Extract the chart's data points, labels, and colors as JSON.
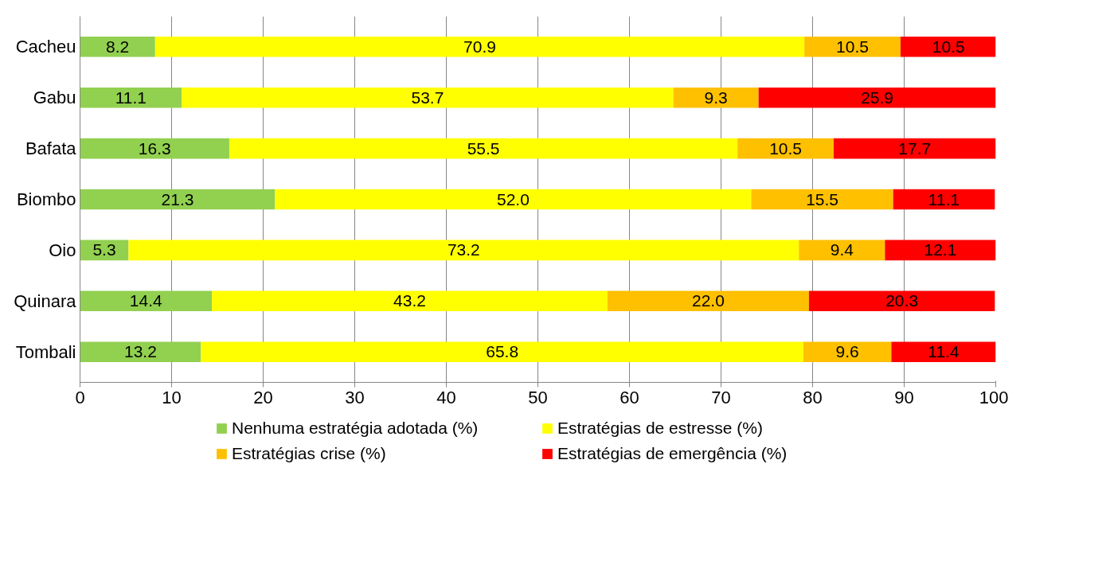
{
  "chart_data": {
    "type": "bar",
    "orientation": "horizontal",
    "stacked": true,
    "categories": [
      "Cacheu",
      "Gabu",
      "Bafata",
      "Biombo",
      "Oio",
      "Quinara",
      "Tombali"
    ],
    "series": [
      {
        "name": "Nenhuma estratégia adotada (%)",
        "color": "#92d050",
        "values": [
          8.2,
          11.1,
          16.3,
          21.3,
          5.3,
          14.4,
          13.2
        ],
        "value_labels": [
          "8.2",
          "11.1",
          "16.3",
          "21.3",
          "5.3",
          "14.4",
          "13.2"
        ]
      },
      {
        "name": "Estratégias de estresse (%)",
        "color": "#ffff00",
        "values": [
          70.9,
          53.7,
          55.5,
          52.0,
          73.2,
          43.2,
          65.8
        ],
        "value_labels": [
          "70.9",
          "53.7",
          "55.5",
          "52.0",
          "73.2",
          "43.2",
          "65.8"
        ]
      },
      {
        "name": "Estratégias crise (%)",
        "color": "#ffc000",
        "values": [
          10.5,
          9.3,
          10.5,
          15.5,
          9.4,
          22.0,
          9.6
        ],
        "value_labels": [
          "10.5",
          "9.3",
          "10.5",
          "15.5",
          "9.4",
          "22.0",
          "9.6"
        ]
      },
      {
        "name": "Estratégias de emergência (%)",
        "color": "#ff0000",
        "values": [
          10.5,
          25.9,
          17.7,
          11.1,
          12.1,
          20.3,
          11.4
        ],
        "value_labels": [
          "10.5",
          "25.9",
          "17.7",
          "11.1",
          "12.1",
          "20.3",
          "11.4"
        ]
      }
    ],
    "xlim": [
      0,
      100
    ],
    "xticks": [
      0,
      10,
      20,
      30,
      40,
      50,
      60,
      70,
      80,
      90,
      100
    ],
    "grid": "x",
    "legend": "bottom"
  }
}
